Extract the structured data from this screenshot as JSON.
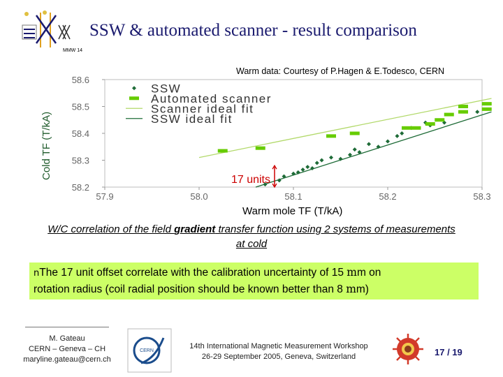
{
  "header": {
    "title": "SSW & automated scanner - result comparison",
    "logo_text": "MMW 14"
  },
  "credit": "Warm data: Courtesy of P.Hagen & E.Todesco, CERN",
  "chart_data": {
    "type": "scatter",
    "xlabel": "Warm mole TF (T/kA)",
    "ylabel": "Cold TF (T/kA)",
    "xlim": [
      57.9,
      58.3
    ],
    "ylim": [
      58.2,
      58.6
    ],
    "x_ticks": [
      "57.9",
      "58.0",
      "58.1",
      "58.2",
      "58.3"
    ],
    "y_ticks": [
      "58.2",
      "58.3",
      "58.4",
      "58.5",
      "58.6"
    ],
    "grid": false,
    "legend_position": "top-left",
    "series": [
      {
        "name": "SSW",
        "marker": "diamond",
        "color": "#1e6b37",
        "points": [
          [
            58.07,
            58.21
          ],
          [
            58.085,
            58.225
          ],
          [
            58.09,
            58.24
          ],
          [
            58.1,
            58.25
          ],
          [
            58.105,
            58.255
          ],
          [
            58.11,
            58.265
          ],
          [
            58.115,
            58.275
          ],
          [
            58.12,
            58.27
          ],
          [
            58.125,
            58.29
          ],
          [
            58.13,
            58.3
          ],
          [
            58.14,
            58.31
          ],
          [
            58.15,
            58.305
          ],
          [
            58.16,
            58.32
          ],
          [
            58.165,
            58.34
          ],
          [
            58.17,
            58.33
          ],
          [
            58.18,
            58.36
          ],
          [
            58.19,
            58.35
          ],
          [
            58.2,
            58.37
          ],
          [
            58.21,
            58.39
          ],
          [
            58.215,
            58.4
          ],
          [
            58.225,
            58.42
          ],
          [
            58.24,
            58.44
          ],
          [
            58.245,
            58.43
          ],
          [
            58.26,
            58.44
          ],
          [
            58.295,
            58.48
          ]
        ]
      },
      {
        "name": "Automated scanner",
        "marker": "square",
        "color": "#66cc00",
        "points": [
          [
            58.025,
            58.335
          ],
          [
            58.065,
            58.345
          ],
          [
            58.14,
            58.39
          ],
          [
            58.165,
            58.4
          ],
          [
            58.22,
            58.42
          ],
          [
            58.23,
            58.42
          ],
          [
            58.245,
            58.435
          ],
          [
            58.255,
            58.45
          ],
          [
            58.265,
            58.47
          ],
          [
            58.28,
            58.48
          ],
          [
            58.28,
            58.5
          ],
          [
            58.305,
            58.49
          ],
          [
            58.305,
            58.51
          ]
        ]
      },
      {
        "name": "Scanner ideal fit",
        "marker": "line",
        "color": "#b2d96a",
        "points": [
          [
            58.0,
            58.31
          ],
          [
            58.31,
            58.53
          ]
        ]
      },
      {
        "name": "SSW ideal fit",
        "marker": "line",
        "color": "#1e6b37",
        "points": [
          [
            58.06,
            58.2
          ],
          [
            58.31,
            58.48
          ]
        ]
      }
    ],
    "annotations": [
      {
        "text": "17 units",
        "color": "#cc0000",
        "x": 58.08,
        "y_from": 58.2,
        "y_to": 58.28
      }
    ]
  },
  "caption": {
    "before": "W/C correlation of the field ",
    "bold": "gradient",
    "after": " transfer function using 2 systems of measurements at cold"
  },
  "note": {
    "bullet": "n",
    "text_line1": "The 17 unit offset correlate with the calibration uncertainty of 15 ",
    "mu1": "m",
    "text_line1_end": "m on",
    "text_line2": "rotation radius (coil radial position should be known better than 8 ",
    "mu2": "m",
    "text_line2_end": "m)"
  },
  "footer": {
    "author_lines": [
      "M. Gateau",
      "CERN – Geneva – CH",
      "maryline.gateau@cern.ch"
    ],
    "cern_text": "CERN",
    "workshop_lines": [
      "14th International Magnetic Measurement Workshop",
      "26-29 September 2005, Geneva, Switzerland"
    ],
    "page_number": "17 / 19"
  },
  "colors": {
    "title": "#1a1a6e",
    "note_bg": "#ccff66",
    "ssw": "#1e6b37",
    "scanner": "#66cc00",
    "annotation": "#cc0000"
  }
}
